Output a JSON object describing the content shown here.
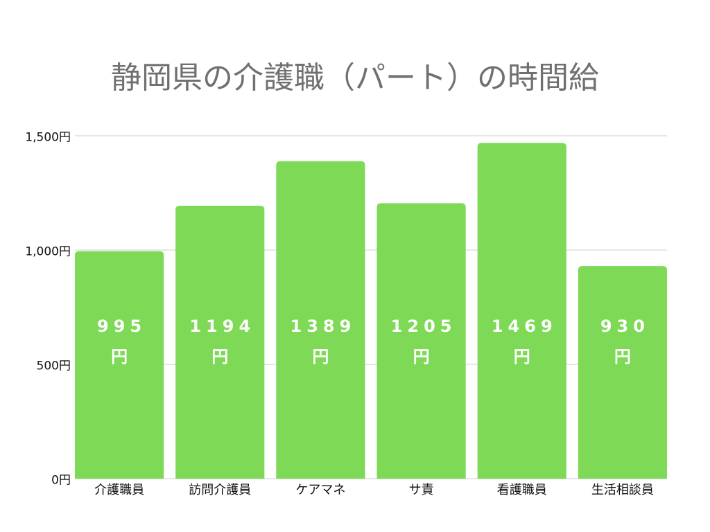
{
  "chart_data": {
    "type": "bar",
    "title": "静岡県の介護職（パート）の時間給",
    "categories": [
      "介護職員",
      "訪問介護員",
      "ケアマネ",
      "サ責",
      "看護職員",
      "生活相談員"
    ],
    "values": [
      995,
      1194,
      1389,
      1205,
      1469,
      930
    ],
    "value_labels": [
      "995円",
      "1194円",
      "1389円",
      "1205円",
      "1469円",
      "930円"
    ],
    "color": "#7ed957",
    "ylim": [
      0,
      1500
    ],
    "yticks": [
      {
        "value": 0,
        "label": "0円"
      },
      {
        "value": 500,
        "label": "500円"
      },
      {
        "value": 1000,
        "label": "1,000円"
      },
      {
        "value": 1500,
        "label": "1,500円"
      }
    ],
    "grid": true
  }
}
